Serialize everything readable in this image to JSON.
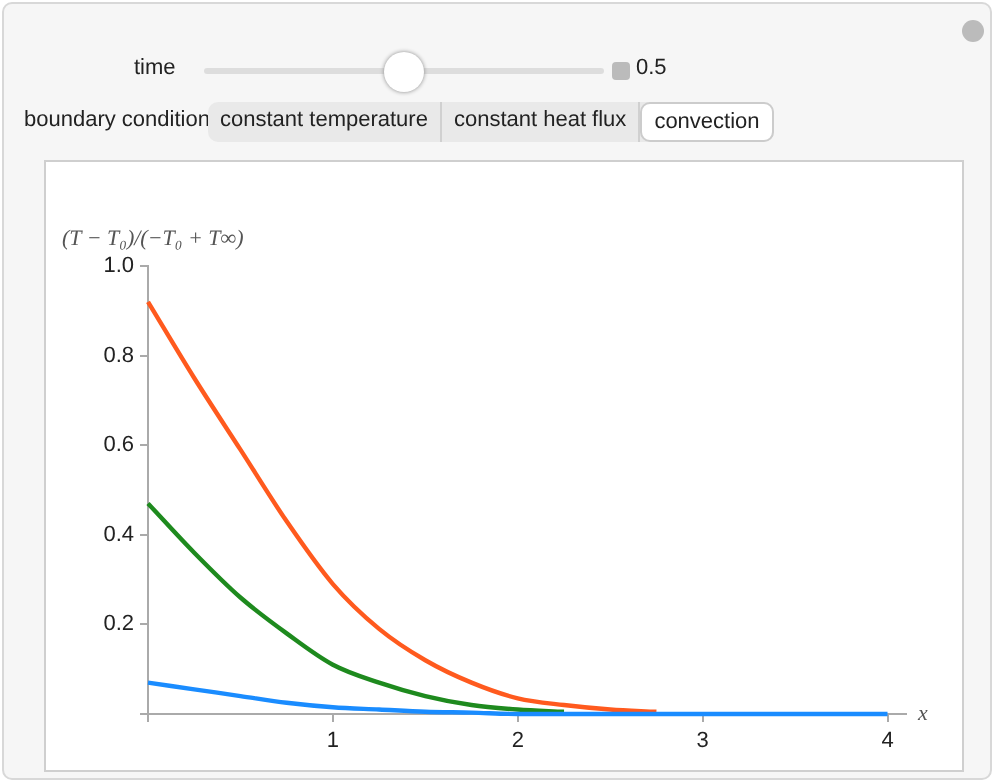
{
  "chart_data": {
    "type": "line",
    "ylabel": "(T − T₀)/(−T₀ + T∞)",
    "xlabel": "x",
    "annotations": [
      "time",
      "0.5",
      "boundary condition",
      "constant temperature",
      "constant heat flux",
      "convection"
    ],
    "x": [
      0,
      0.25,
      0.5,
      0.75,
      1,
      1.25,
      1.5,
      1.75,
      2,
      2.25,
      2.5,
      2.75,
      3,
      3.5,
      4
    ],
    "series": [
      {
        "color": "#ff5a1e",
        "values": [
          0.92,
          0.75,
          0.59,
          0.43,
          0.29,
          0.19,
          0.12,
          0.07,
          0.035,
          0.02,
          0.01,
          0.005,
          null,
          null,
          null
        ]
      },
      {
        "color": "#1e8a1e",
        "values": [
          0.47,
          0.36,
          0.26,
          0.18,
          0.11,
          0.07,
          0.04,
          0.02,
          0.01,
          0.005,
          null,
          null,
          null,
          null,
          null
        ]
      },
      {
        "color": "#1a8cff",
        "values": [
          0.07,
          0.055,
          0.04,
          0.025,
          0.015,
          0.01,
          0.005,
          0.003,
          0,
          0,
          0,
          0,
          0,
          0,
          0
        ]
      }
    ],
    "xlim": [
      0,
      4.1
    ],
    "ylim": [
      0,
      1.0
    ],
    "xticks": [
      {
        "value": 0,
        "label": null
      },
      1,
      2,
      3,
      4
    ],
    "yticks": [
      {
        "value": 0,
        "label": null
      },
      0.2,
      0.4,
      0.6,
      0.8,
      {
        "value": 1.0,
        "label": "1.0"
      }
    ],
    "grid": false,
    "legend": false,
    "marker": "none",
    "line_style": "solid"
  }
}
